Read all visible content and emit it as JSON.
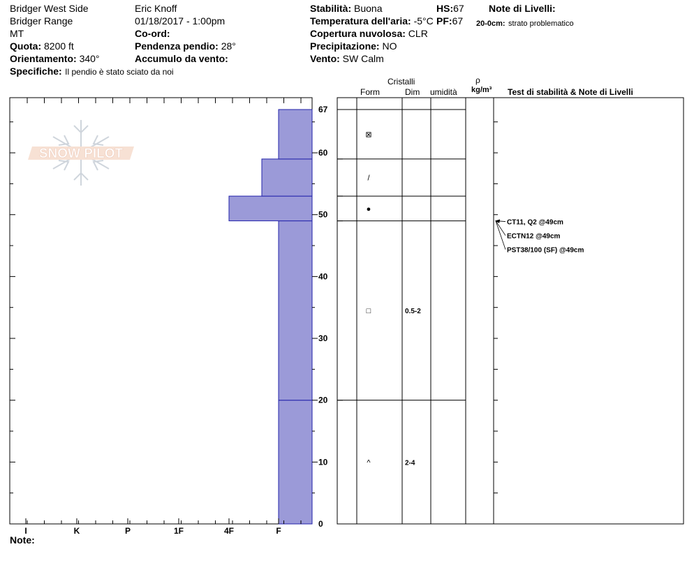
{
  "header": {
    "location": "Bridger West Side",
    "range": "Bridger Range",
    "state": "MT",
    "observer": "Eric Knoff",
    "datetime": "01/18/2017 - 1:00pm",
    "elevation_label": "Quota:",
    "elevation_value": "8200 ft",
    "aspect_label": "Orientamento:",
    "aspect_value": "340°",
    "coord_label": "Co-ord:",
    "slope_label": "Pendenza pendio:",
    "slope_value": "28°",
    "wind_loading_label": "Accumulo da vento:",
    "specifics_label": "Specifiche:",
    "specifics_value": "Il pendio è stato sciato da noi",
    "stability_label": "Stabilità:",
    "stability_value": "Buona",
    "air_temp_label": "Temperatura dell'aria:",
    "air_temp_value": "-5°C",
    "cloud_label": "Copertura nuvolosa:",
    "cloud_value": "CLR",
    "precip_label": "Precipitazione:",
    "precip_value": "NO",
    "wind_label": "Vento:",
    "wind_value": "SW Calm",
    "hs_label": "HS:",
    "hs_value": "67",
    "pf_label": "PF:",
    "pf_value": "67",
    "layer_notes_label": "Note di Livelli:",
    "layer_note_depth": "20-0cm:",
    "layer_note_text": "strato problematico"
  },
  "watermark": {
    "text": "SNOW PILOT"
  },
  "columns": {
    "crystals": "Cristalli",
    "form": "Form",
    "dim": "Dim",
    "moisture": "umidità",
    "rho": "ρ",
    "density_unit": "kg/m³",
    "stability_notes": "Test di stabilità & Note di Livelli"
  },
  "footer": {
    "notes_label": "Note:"
  },
  "chart_data": {
    "type": "bar",
    "orientation": "horizontal",
    "hardness_scale": [
      "I",
      "K",
      "P",
      "1F",
      "4F",
      "F"
    ],
    "y_ticks": [
      "0",
      "10",
      "20",
      "30",
      "40",
      "50",
      "60",
      "67"
    ],
    "ylim": [
      0,
      67
    ],
    "layers": [
      {
        "bottom": 0,
        "top": 20,
        "hardness": "F",
        "form": "^",
        "size": "2-4"
      },
      {
        "bottom": 20,
        "top": 49,
        "hardness": "F",
        "form": "□",
        "size": "0.5-2"
      },
      {
        "bottom": 49,
        "top": 53,
        "hardness": "4F",
        "form": "●",
        "size": ""
      },
      {
        "bottom": 53,
        "top": 59,
        "hardness": "F+",
        "form": "/",
        "size": ""
      },
      {
        "bottom": 59,
        "top": 67,
        "hardness": "F",
        "form": "⊠",
        "size": ""
      }
    ],
    "stability_tests": [
      {
        "text": "CT11, Q2 @49cm",
        "depth": 49
      },
      {
        "text": "ECTN12 @49cm",
        "depth": 49
      },
      {
        "text": "PST38/100 (SF) @49cm",
        "depth": 49
      }
    ],
    "colors": {
      "bar_fill": "#9b9ad8",
      "bar_stroke": "#2222aa"
    }
  }
}
